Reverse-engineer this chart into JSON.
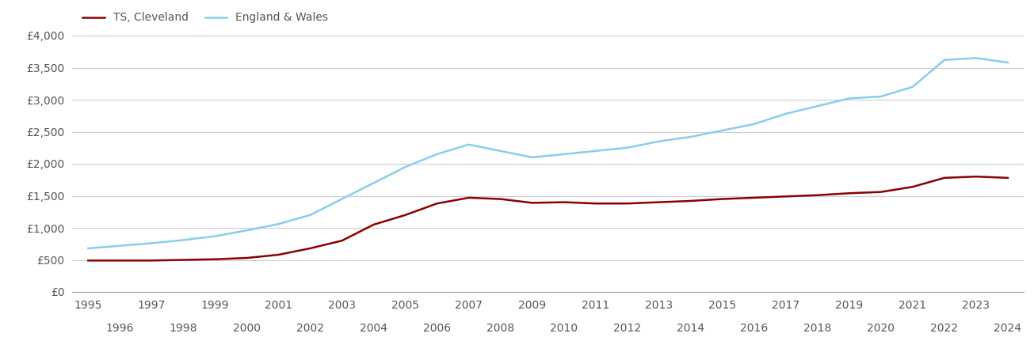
{
  "legend_labels": [
    "TS, Cleveland",
    "England & Wales"
  ],
  "cleveland_color": "#8b0000",
  "ew_color": "#87ceeb",
  "background_color": "#ffffff",
  "grid_color": "#cccccc",
  "years": [
    1995,
    1996,
    1997,
    1998,
    1999,
    2000,
    2001,
    2002,
    2003,
    2004,
    2005,
    2006,
    2007,
    2008,
    2009,
    2010,
    2011,
    2012,
    2013,
    2014,
    2015,
    2016,
    2017,
    2018,
    2019,
    2020,
    2021,
    2022,
    2023,
    2024
  ],
  "cleveland": [
    490,
    490,
    490,
    500,
    510,
    530,
    580,
    680,
    800,
    1050,
    1200,
    1380,
    1470,
    1450,
    1390,
    1400,
    1380,
    1380,
    1400,
    1420,
    1450,
    1470,
    1490,
    1510,
    1540,
    1560,
    1640,
    1780,
    1800,
    1780
  ],
  "england_wales": [
    680,
    720,
    760,
    810,
    870,
    960,
    1060,
    1200,
    1450,
    1700,
    1950,
    2150,
    2300,
    2200,
    2100,
    2150,
    2200,
    2250,
    2350,
    2420,
    2520,
    2620,
    2780,
    2900,
    3020,
    3050,
    3200,
    3620,
    3650,
    3580
  ],
  "ylim": [
    0,
    4000
  ],
  "yticks": [
    0,
    500,
    1000,
    1500,
    2000,
    2500,
    3000,
    3500,
    4000
  ],
  "ytick_labels": [
    "£0",
    "£500",
    "£1,000",
    "£1,500",
    "£2,000",
    "£2,500",
    "£3,000",
    "£3,500",
    "£4,000"
  ],
  "xticks_odd": [
    1995,
    1997,
    1999,
    2001,
    2003,
    2005,
    2007,
    2009,
    2011,
    2013,
    2015,
    2017,
    2019,
    2021,
    2023
  ],
  "xticks_even": [
    1996,
    1998,
    2000,
    2002,
    2004,
    2006,
    2008,
    2010,
    2012,
    2014,
    2016,
    2018,
    2020,
    2022,
    2024
  ],
  "xlim": [
    1994.5,
    2024.5
  ],
  "line_width": 1.8,
  "tick_fontsize": 10,
  "tick_color": "#555555"
}
